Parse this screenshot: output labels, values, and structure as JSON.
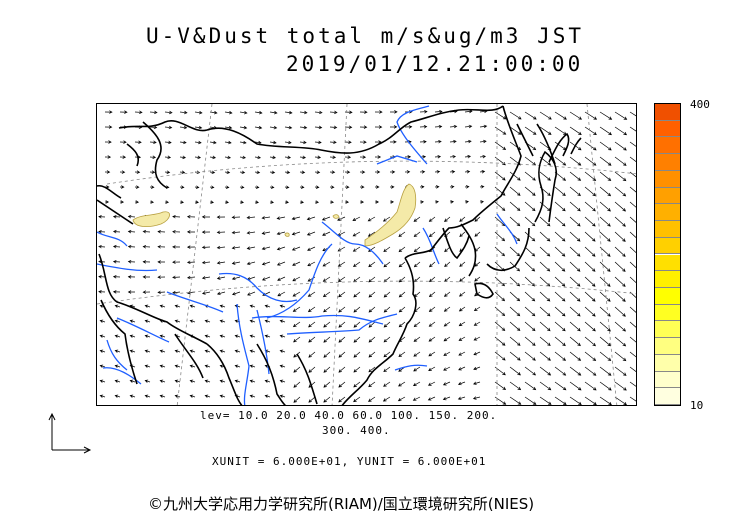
{
  "header": {
    "title_line1": "U-V&Dust total m/s&ug/m3 JST",
    "title_line2": "2019/01/12.21:00:00"
  },
  "legend": {
    "max_label": "400",
    "min_label": "10",
    "levels_line1": "lev= 10.0 20.0 40.0 60.0 100. 150. 200.",
    "levels_line2": "300. 400.",
    "colors": [
      "#ffffe0",
      "#ffffcc",
      "#ffffaa",
      "#ffff80",
      "#ffff55",
      "#ffff22",
      "#ffff00",
      "#fff000",
      "#ffe000",
      "#ffd000",
      "#ffc000",
      "#ffb000",
      "#ffa000",
      "#ff9000",
      "#ff8000",
      "#ff7000",
      "#ff6000",
      "#f05000"
    ]
  },
  "units": {
    "text": "XUNIT = 6.000E+01, YUNIT = 6.000E+01"
  },
  "credit": {
    "text": "©九州大学応用力学研究所(RIAM)/国立環境研究所(NIES)"
  },
  "map": {
    "dust_color": "#f4eaa8",
    "coast_color": "#000000",
    "river_color": "#1f5fff",
    "grid_color": "#888888"
  }
}
